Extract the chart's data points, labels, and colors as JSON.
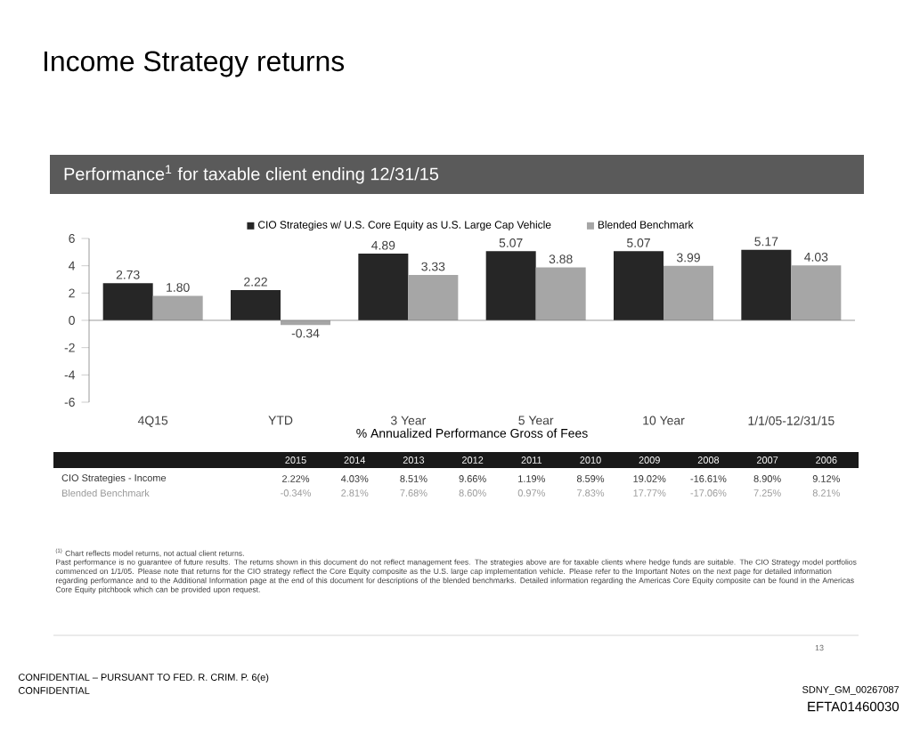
{
  "chart_data": {
    "type": "bar",
    "title": "Income Strategy returns",
    "subtitle": "Performance$^{1}$ for taxable client ending 12/31/15",
    "xlabel": "% Annualized Performance Gross of Fees",
    "categories": [
      "4Q15",
      "YTD",
      "3 Year",
      "5 Year",
      "10 Year",
      "1/1/05-12/31/15"
    ],
    "series": [
      {
        "name": "CIO Strategies w/ U.S. Core Equity as U.S. Large Cap Vehicle",
        "color": "#262626",
        "values": [
          2.73,
          2.22,
          4.89,
          5.07,
          5.07,
          5.17
        ],
        "value_labels": [
          "2.73",
          "2.22",
          "4.89",
          "5.07",
          "5.07",
          "5.17"
        ]
      },
      {
        "name": "Blended Benchmark",
        "color": "#a6a6a6",
        "values": [
          1.8,
          -0.34,
          3.33,
          3.88,
          3.99,
          4.03
        ],
        "value_labels": [
          "1.80",
          "-0.34",
          "3.33",
          "3.88",
          "3.99",
          "4.03"
        ]
      }
    ],
    "ylim": [
      -6,
      6
    ],
    "yticks": [
      -6,
      -4,
      -2,
      0,
      2,
      4,
      6
    ],
    "legend": "top",
    "annotations": [
      "2015",
      "2014",
      "2013",
      "2012",
      "2011",
      "2010",
      "2009",
      "2008",
      "2007",
      "2006",
      "CIO Strategies - Income",
      "2.22%",
      "4.03%",
      "8.51%",
      "9.66%",
      "1.19%",
      "8.59%",
      "19.02%",
      "-16.61%",
      "8.90%",
      "9.12%",
      "Blended Benchmark",
      "-0.34%",
      "2.81%",
      "7.68%",
      "8.60%",
      "0.97%",
      "7.83%",
      "17.77%",
      "-17.06%",
      "7.25%",
      "8.21%",
      "$^{(1)}$ Chart reflects model returns, not actual client returns.",
      "Past performance is no guarantee of future results. The returns shown in this document do not reflect management fees. The strategies above are for taxable clients where hedge funds are suitable. The CIO Strategy model portfolios commenced on 1/1/05. Please note that returns for the CIO strategy reflect the Core Equity composite as the U.S. large cap implementation vehicle. Please refer to the Important Notes on the next page for detailed information regarding performance and to the Additional Information page at the end of this document for descriptions of the blended benchmarks. Detailed information regarding the Americas Core Equity composite can be found in the Americas Core Equity pitchbook which can be provided upon request.",
      "13",
      "CONFIDENTIAL – PURSUANT TO FED. R. CRIM. P. 6(e)",
      "CONFIDENTIAL",
      "SDNY_GM_00267087",
      "EFTA01460030"
    ]
  }
}
